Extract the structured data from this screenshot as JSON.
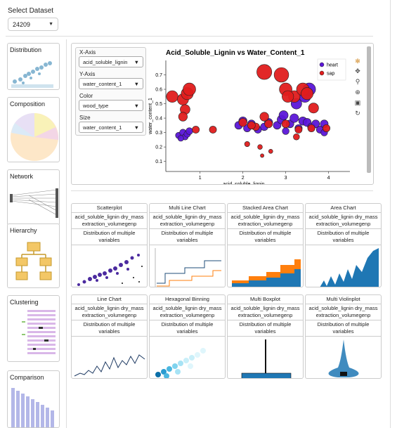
{
  "header": {
    "select_label": "Select Dataset",
    "dataset_value": "24209"
  },
  "sidebar": [
    {
      "name": "sidebar-card-distribution",
      "label": "Distribution"
    },
    {
      "name": "sidebar-card-composition",
      "label": "Composition"
    },
    {
      "name": "sidebar-card-network",
      "label": "Network"
    },
    {
      "name": "sidebar-card-hierarchy",
      "label": "Hierarchy"
    },
    {
      "name": "sidebar-card-clustering",
      "label": "Clustering"
    },
    {
      "name": "sidebar-card-comparison",
      "label": "Comparison"
    }
  ],
  "controls": {
    "x_label": "X-Axis",
    "x_value": "acid_soluble_lignin",
    "y_label": "Y-Axis",
    "y_value": "water_content_1",
    "color_label": "Color",
    "color_value": "wood_type",
    "size_label": "Size",
    "size_value": "water_content_1"
  },
  "chart_data": {
    "type": "scatter",
    "title": "Acid_Soluble_Lignin vs Water_Content_1",
    "xlabel": "acid_soluble_lignin",
    "ylabel": "water_content_1",
    "xlim": [
      0.2,
      4.5
    ],
    "ylim": [
      0.03,
      0.8
    ],
    "xticks": [
      "1",
      "2",
      "3",
      "4"
    ],
    "yticks": [
      "0.1",
      "0.2",
      "0.3",
      "0.4",
      "0.5",
      "0.6",
      "0.7"
    ],
    "legend_position": "top-right",
    "series": [
      {
        "name": "heart",
        "color": "#5b16d8",
        "x": [
          0.5,
          0.6,
          0.65,
          0.7,
          0.55,
          0.75,
          1.9,
          2.0,
          2.1,
          2.2,
          2.35,
          2.5,
          2.6,
          2.8,
          2.9,
          3.0,
          3.1,
          3.2,
          3.3,
          3.4,
          3.5,
          3.6,
          3.7,
          3.8,
          3.9,
          3.25,
          3.45,
          3.55,
          3.9,
          2.95
        ],
        "y": [
          0.28,
          0.3,
          0.27,
          0.29,
          0.26,
          0.31,
          0.35,
          0.38,
          0.33,
          0.36,
          0.32,
          0.34,
          0.37,
          0.35,
          0.39,
          0.31,
          0.36,
          0.4,
          0.33,
          0.38,
          0.37,
          0.34,
          0.36,
          0.32,
          0.3,
          0.5,
          0.55,
          0.6,
          0.36,
          0.42
        ],
        "size": [
          0.28,
          0.3,
          0.27,
          0.29,
          0.26,
          0.31,
          0.35,
          0.38,
          0.33,
          0.36,
          0.32,
          0.34,
          0.37,
          0.35,
          0.39,
          0.31,
          0.36,
          0.4,
          0.33,
          0.38,
          0.37,
          0.34,
          0.36,
          0.32,
          0.3,
          0.5,
          0.55,
          0.6,
          0.36,
          0.42
        ]
      },
      {
        "name": "sap",
        "color": "#e01c1c",
        "x": [
          0.35,
          0.6,
          0.7,
          0.75,
          0.65,
          0.6,
          0.9,
          1.3,
          2.0,
          2.3,
          2.5,
          2.6,
          2.9,
          3.0,
          3.2,
          3.4,
          3.5,
          3.65,
          3.95,
          2.1,
          2.4,
          2.45,
          2.65,
          3.25,
          3.3,
          3.0,
          3.05,
          2.2,
          3.6,
          2.5
        ],
        "y": [
          0.55,
          0.53,
          0.57,
          0.6,
          0.46,
          0.41,
          0.32,
          0.32,
          0.37,
          0.34,
          0.72,
          0.36,
          0.7,
          0.6,
          0.55,
          0.6,
          0.57,
          0.47,
          0.33,
          0.22,
          0.2,
          0.14,
          0.17,
          0.27,
          0.32,
          0.36,
          0.55,
          0.35,
          0.33,
          0.41
        ],
        "size": [
          0.55,
          0.53,
          0.57,
          0.6,
          0.46,
          0.41,
          0.32,
          0.32,
          0.37,
          0.34,
          0.72,
          0.36,
          0.7,
          0.6,
          0.55,
          0.6,
          0.57,
          0.47,
          0.33,
          0.22,
          0.2,
          0.14,
          0.17,
          0.27,
          0.32,
          0.36,
          0.55,
          0.35,
          0.33,
          0.41
        ]
      }
    ]
  },
  "gallery": [
    {
      "name": "gallery-card-scatterplot",
      "title": "Scatterplot"
    },
    {
      "name": "gallery-card-multi-line-chart",
      "title": "Multi Line Chart"
    },
    {
      "name": "gallery-card-stacked-area-chart",
      "title": "Stacked Area Chart"
    },
    {
      "name": "gallery-card-area-chart",
      "title": "Area Chart"
    },
    {
      "name": "gallery-card-line-chart",
      "title": "Line Chart"
    },
    {
      "name": "gallery-card-hexagonal-binning",
      "title": "Hexagonal Binning"
    },
    {
      "name": "gallery-card-multi-boxplot",
      "title": "Multi Boxplot"
    },
    {
      "name": "gallery-card-multi-violinplot",
      "title": "Multi Violinplot"
    }
  ],
  "gallery_common": {
    "variables": "acid_soluble_lignin dry_mass extraction_volumegenp",
    "description": "Distribution of multiple variables"
  },
  "colors": {
    "heart": "#5b16d8",
    "sap": "#e01c1c",
    "accent_blue": "#1f77b4",
    "orange": "#ff7f0e"
  }
}
